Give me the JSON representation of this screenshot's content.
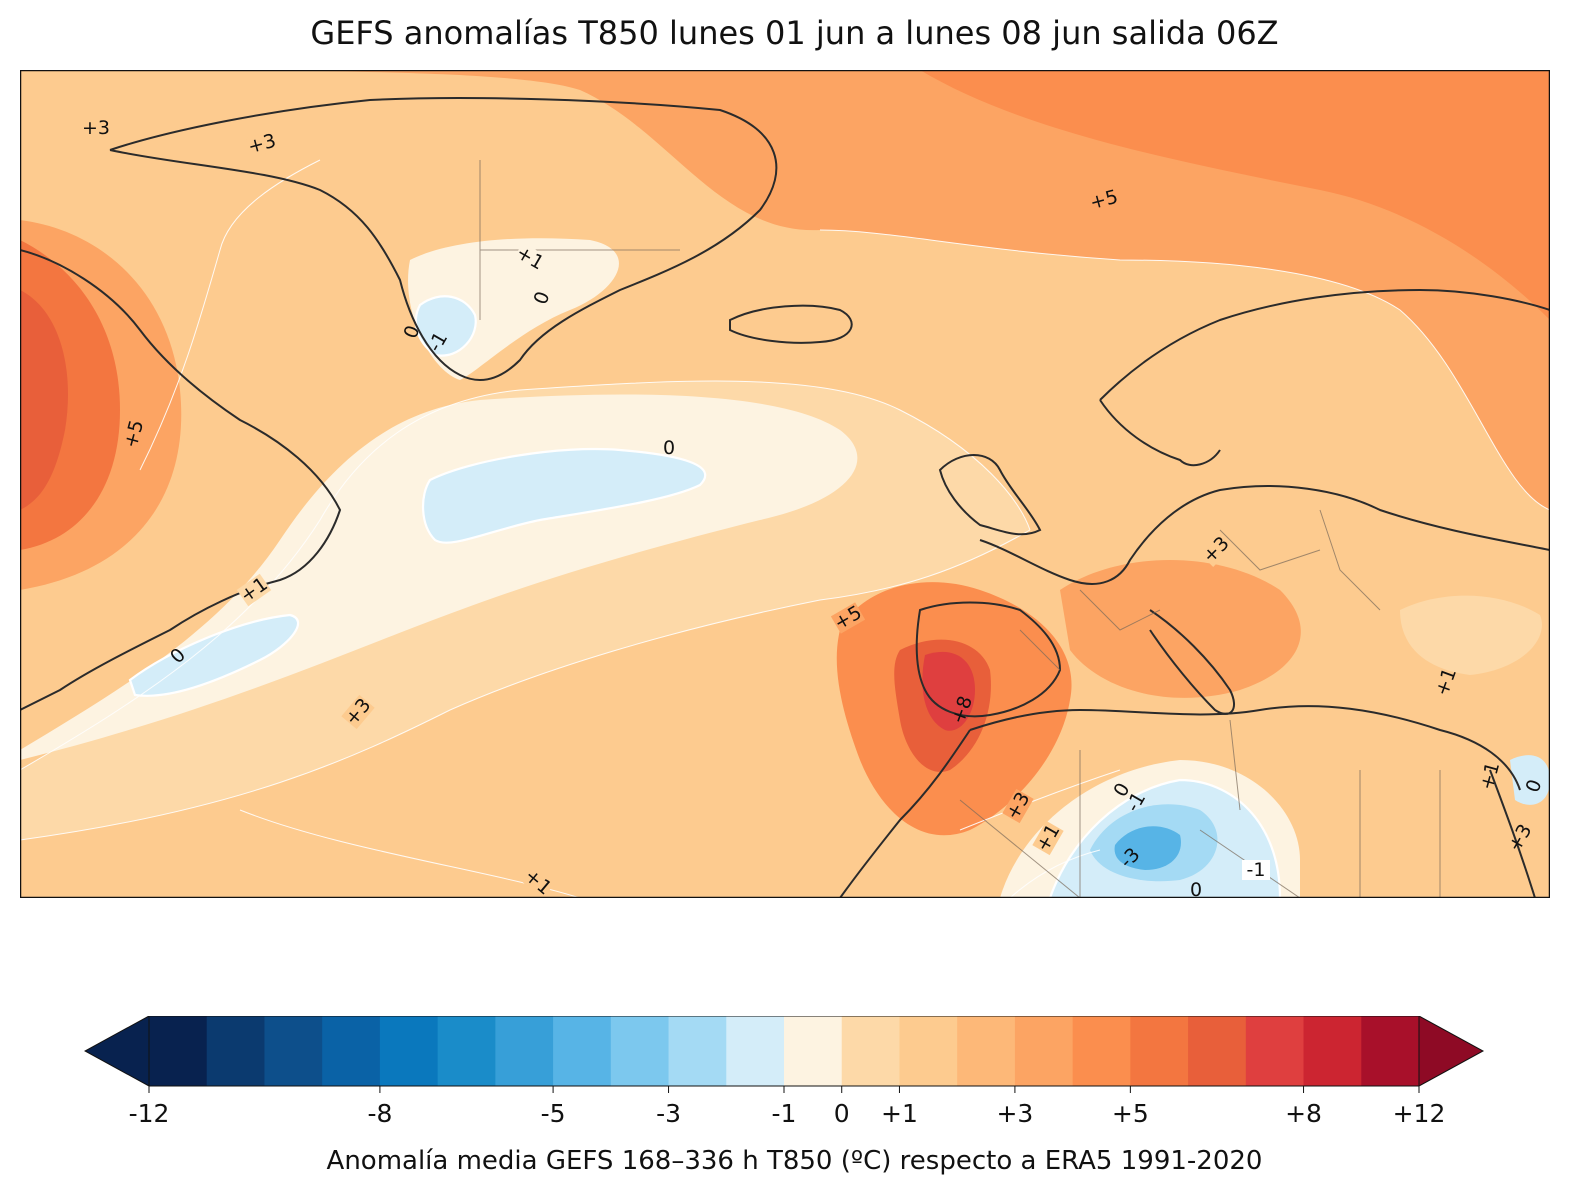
{
  "title": "GEFS anomalías T850 lunes 01 jun a lunes 08 jun salida 06Z",
  "colorbar": {
    "label": "Anomalía media GEFS 168–336 h T850 (ºC) respecto a ERA5 1991-2020",
    "ticks": [
      "-12",
      "-8",
      "-5",
      "-3",
      "-1",
      "0",
      "+1",
      "+3",
      "+5",
      "+8",
      "+12"
    ],
    "colors": [
      "#08224f",
      "#0b3a6f",
      "#0d4f8b",
      "#0a62a6",
      "#0a78bd",
      "#1a8cc9",
      "#379fd8",
      "#57b4e6",
      "#7cc8ee",
      "#a4daf4",
      "#d4edf9",
      "#fdf3e1",
      "#fdd9a8",
      "#fdcb8f",
      "#fdb878",
      "#fca463",
      "#fb8e4e",
      "#f37640",
      "#e85f3a",
      "#df3f3f",
      "#cc2531",
      "#a8102a"
    ],
    "over_color": "#8e0a25",
    "under_color": "#08224f"
  },
  "map": {
    "ocean_base_color": "#fdcb8f",
    "contour_labels": [
      {
        "text": "+3"
      },
      {
        "text": "+3"
      },
      {
        "text": "+5"
      },
      {
        "text": "+1"
      },
      {
        "text": "0"
      },
      {
        "text": "0"
      },
      {
        "text": "-1"
      },
      {
        "text": "+5"
      },
      {
        "text": "0"
      },
      {
        "text": "+3"
      },
      {
        "text": "+1"
      },
      {
        "text": "0"
      },
      {
        "text": "+5"
      },
      {
        "text": "+3"
      },
      {
        "text": "+8"
      },
      {
        "text": "+1"
      },
      {
        "text": "+3"
      },
      {
        "text": "+1"
      },
      {
        "text": "0"
      },
      {
        "text": "-1"
      },
      {
        "text": "-3"
      },
      {
        "text": "-1"
      },
      {
        "text": "0"
      },
      {
        "text": "+1"
      },
      {
        "text": "+1"
      },
      {
        "text": "0"
      },
      {
        "text": "+3"
      }
    ]
  }
}
